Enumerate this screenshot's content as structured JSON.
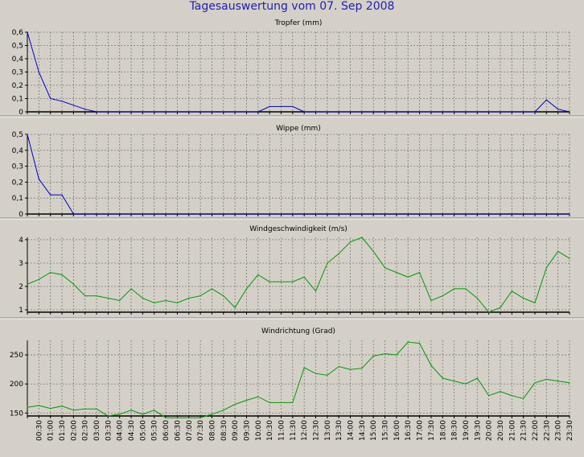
{
  "window_title": "Tagesauswertung vom 07. Sep 2008",
  "colors": {
    "title": "#2020b8",
    "blue_series": "#0000cc",
    "green_series": "#009900",
    "grid": "#909090"
  },
  "chart_data": [
    {
      "type": "line",
      "title": "Tropfer (mm)",
      "color": "#0000cc",
      "ylim": [
        0,
        0.6
      ],
      "yticks": [
        0,
        0.1,
        0.2,
        0.3,
        0.4,
        0.5,
        0.6
      ],
      "ytick_labels": [
        "0",
        "0,1",
        "0,2",
        "0,3",
        "0,4",
        "0,5",
        "0,6"
      ],
      "x_hours": [
        0,
        0.5,
        1,
        1.5,
        2,
        2.5,
        3,
        4,
        5,
        6,
        7,
        8,
        9,
        10,
        10.5,
        11,
        11.5,
        12,
        13,
        14,
        15,
        16,
        17,
        18,
        19,
        20,
        21,
        22,
        22.5,
        23,
        23.5
      ],
      "values": [
        0.6,
        0.3,
        0.1,
        0.08,
        0.05,
        0.02,
        0,
        0,
        0,
        0,
        0,
        0,
        0,
        0,
        0.04,
        0.04,
        0.04,
        0,
        0,
        0,
        0,
        0,
        0,
        0,
        0,
        0,
        0,
        0,
        0.09,
        0.02,
        0
      ]
    },
    {
      "type": "line",
      "title": "Wippe (mm)",
      "color": "#0000cc",
      "ylim": [
        0,
        0.5
      ],
      "yticks": [
        0,
        0.1,
        0.2,
        0.3,
        0.4,
        0.5
      ],
      "ytick_labels": [
        "0",
        "0,1",
        "0,2",
        "0,3",
        "0,4",
        "0,5"
      ],
      "x_hours": [
        0,
        0.5,
        1,
        1.5,
        2,
        2.5,
        3,
        6,
        9,
        12,
        15,
        18,
        21,
        23.5
      ],
      "values": [
        0.5,
        0.22,
        0.12,
        0.12,
        0,
        0,
        0,
        0,
        0,
        0,
        0,
        0,
        0,
        0
      ]
    },
    {
      "type": "line",
      "title": "Windgeschwindigkeit (m/s)",
      "color": "#009900",
      "ylim": [
        0.9,
        4.1
      ],
      "yticks": [
        1,
        2,
        3,
        4
      ],
      "ytick_labels": [
        "1",
        "2",
        "3",
        "4"
      ],
      "x_hours": [
        0,
        0.5,
        1,
        1.5,
        2,
        2.5,
        3,
        3.5,
        4,
        4.5,
        5,
        5.5,
        6,
        6.5,
        7,
        7.5,
        8,
        8.5,
        9,
        9.5,
        10,
        10.5,
        11,
        11.5,
        12,
        12.5,
        13,
        13.5,
        14,
        14.5,
        15,
        15.5,
        16,
        16.5,
        17,
        17.5,
        18,
        18.5,
        19,
        19.5,
        20,
        20.5,
        21,
        21.5,
        22,
        22.5,
        23,
        23.5
      ],
      "values": [
        2.1,
        2.3,
        2.6,
        2.5,
        2.1,
        1.6,
        1.6,
        1.5,
        1.4,
        1.9,
        1.5,
        1.3,
        1.4,
        1.3,
        1.5,
        1.6,
        1.9,
        1.6,
        1.1,
        1.9,
        2.5,
        2.2,
        2.2,
        2.2,
        2.4,
        1.8,
        3.0,
        3.4,
        3.9,
        4.1,
        3.5,
        2.8,
        2.6,
        2.4,
        2.6,
        1.4,
        1.6,
        1.9,
        1.9,
        1.5,
        0.9,
        1.1,
        1.8,
        1.5,
        1.3,
        2.8,
        3.5,
        3.2
      ]
    },
    {
      "type": "line",
      "title": "Windrichtung (Grad)",
      "color": "#009900",
      "ylim": [
        145,
        275
      ],
      "yticks": [
        150,
        200,
        250
      ],
      "ytick_labels": [
        "150",
        "200",
        "250"
      ],
      "x_hours": [
        0,
        0.5,
        1,
        1.5,
        2,
        2.5,
        3,
        3.5,
        4,
        4.5,
        5,
        5.5,
        6,
        6.5,
        7,
        7.5,
        8,
        8.5,
        9,
        9.5,
        10,
        10.5,
        11,
        11.5,
        12,
        12.5,
        13,
        13.5,
        14,
        14.5,
        15,
        15.5,
        16,
        16.5,
        17,
        17.5,
        18,
        18.5,
        19,
        19.5,
        20,
        20.5,
        21,
        21.5,
        22,
        22.5,
        23,
        23.5
      ],
      "values": [
        160,
        163,
        158,
        162,
        155,
        157,
        157,
        145,
        148,
        155,
        148,
        155,
        142,
        142,
        142,
        142,
        148,
        155,
        165,
        172,
        178,
        168,
        168,
        168,
        228,
        218,
        215,
        230,
        225,
        227,
        248,
        252,
        250,
        272,
        270,
        232,
        210,
        205,
        200,
        210,
        180,
        187,
        180,
        175,
        202,
        208,
        205,
        202
      ]
    }
  ],
  "x_axis": {
    "tick_labels": [
      "00:30",
      "01:00",
      "01:30",
      "02:00",
      "02:30",
      "03:00",
      "03:30",
      "04:00",
      "04:30",
      "05:00",
      "05:30",
      "06:00",
      "06:30",
      "07:00",
      "07:30",
      "08:00",
      "08:30",
      "09:00",
      "09:30",
      "10:00",
      "10:30",
      "11:00",
      "11:30",
      "12:00",
      "12:30",
      "13:00",
      "13:30",
      "14:00",
      "14:30",
      "15:00",
      "15:30",
      "16:00",
      "16:30",
      "17:00",
      "17:30",
      "18:00",
      "18:30",
      "19:00",
      "19:30",
      "20:00",
      "20:30",
      "21:00",
      "21:30",
      "22:00",
      "22:30",
      "23:00",
      "23:30"
    ]
  }
}
